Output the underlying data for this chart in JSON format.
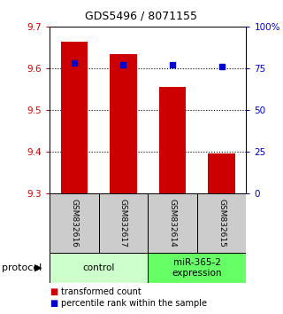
{
  "title": "GDS5496 / 8071155",
  "samples": [
    "GSM832616",
    "GSM832617",
    "GSM832614",
    "GSM832615"
  ],
  "bar_values": [
    9.665,
    9.635,
    9.555,
    9.395
  ],
  "percentile_values": [
    78,
    77,
    77,
    76
  ],
  "ylim_left": [
    9.3,
    9.7
  ],
  "ylim_right": [
    0,
    100
  ],
  "yticks_left": [
    9.3,
    9.4,
    9.5,
    9.6,
    9.7
  ],
  "yticks_right": [
    0,
    25,
    50,
    75,
    100
  ],
  "ytick_labels_right": [
    "0",
    "25",
    "50",
    "75",
    "100%"
  ],
  "gridlines_at": [
    9.4,
    9.5,
    9.6
  ],
  "bar_color": "#cc0000",
  "dot_color": "#0000cc",
  "groups": [
    {
      "label": "control",
      "indices": [
        0,
        1
      ],
      "color": "#ccffcc"
    },
    {
      "label": "miR-365-2\nexpression",
      "indices": [
        2,
        3
      ],
      "color": "#66ff66"
    }
  ],
  "legend_items": [
    {
      "label": "transformed count",
      "color": "#cc0000"
    },
    {
      "label": "percentile rank within the sample",
      "color": "#0000cc"
    }
  ],
  "protocol_label": "protocol",
  "sample_box_color": "#cccccc",
  "left_axis_color": "#cc0000",
  "right_axis_color": "#0000cc",
  "bar_width": 0.55,
  "title_fontsize": 9,
  "tick_fontsize": 7.5,
  "sample_fontsize": 6.5,
  "group_fontsize": 7.5,
  "legend_fontsize": 7,
  "protocol_fontsize": 8
}
